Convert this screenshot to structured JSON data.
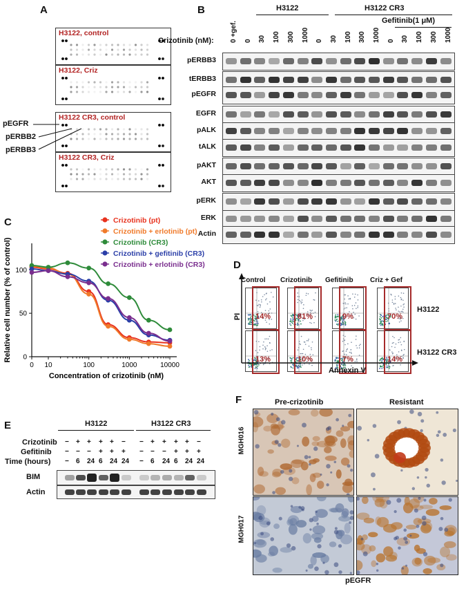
{
  "panels": {
    "A": "A",
    "B": "B",
    "C": "C",
    "D": "D",
    "E": "E",
    "F": "F"
  },
  "panelA": {
    "arrays": [
      "H3122, control",
      "H3122, Criz",
      "H3122 CR3, control",
      "H3122 CR3, Criz"
    ],
    "pointers": [
      "pEGFR",
      "pERBB2",
      "pERBB3"
    ]
  },
  "panelB": {
    "groups": [
      "H3122",
      "H3122 CR3"
    ],
    "gefitinib_header": "Gefitinib(1 μM)",
    "dose_label": "Crizotinib (nM):",
    "doses": [
      "0 +gef.",
      "0",
      "30",
      "100",
      "300",
      "1000",
      "0",
      "30",
      "100",
      "300",
      "1000",
      "0",
      "30",
      "100",
      "300",
      "1000"
    ],
    "rows": [
      "pERBB3",
      "tERBB3",
      "pEGFR",
      "EGFR",
      "pALK",
      "tALK",
      "pAKT",
      "AKT",
      "pERK",
      "ERK",
      "Actin"
    ]
  },
  "chart_data": {
    "type": "scatter",
    "xlabel": "Concentration of crizotinib (nM)",
    "ylabel": "Relative cell number (% of control)",
    "x_scale": "log",
    "xticks": [
      "0",
      "10",
      "100",
      "1000",
      "10000"
    ],
    "yticks": [
      "0",
      "50",
      "100"
    ],
    "ylim": [
      0,
      120
    ],
    "legend_position": "top-right",
    "x": [
      0,
      10,
      30,
      100,
      300,
      1000,
      3000,
      10000
    ],
    "series": [
      {
        "name": "Crizotinib (pt)",
        "color": "#e8321e",
        "values": [
          103,
          101,
          96,
          75,
          37,
          22,
          17,
          16
        ]
      },
      {
        "name": "Crizotinib + erlotinib (pt)",
        "color": "#f07a2a",
        "values": [
          104,
          102,
          95,
          72,
          35,
          20,
          15,
          12
        ]
      },
      {
        "name": "Crizotinib (CR3)",
        "color": "#2e8b3a",
        "values": [
          105,
          103,
          108,
          102,
          84,
          68,
          42,
          31
        ]
      },
      {
        "name": "Crizotinib + gefitinib (CR3)",
        "color": "#2b3fa8",
        "values": [
          101,
          99,
          95,
          87,
          65,
          42,
          25,
          19
        ]
      },
      {
        "name": "Crizotinib + erlotinib (CR3)",
        "color": "#7a2e8e",
        "values": [
          97,
          99,
          92,
          85,
          67,
          45,
          27,
          18
        ]
      }
    ]
  },
  "panelD": {
    "columns": [
      "Control",
      "Crizotinib",
      "Gefitinib",
      "Criz + Gef"
    ],
    "rows": [
      "H3122",
      "H3122 CR3"
    ],
    "values": [
      [
        "14%",
        "81%",
        "9%",
        "70%"
      ],
      [
        "13%",
        "10%",
        "7%",
        "14%"
      ]
    ],
    "xlabel": "Annexin V",
    "ylabel": "PI"
  },
  "panelE": {
    "groups": [
      "H3122",
      "H3122 CR3"
    ],
    "row_labels": [
      "Crizotinib",
      "Gefitinib",
      "Time (hours)"
    ],
    "crizotinib": [
      "−",
      "+",
      "+",
      "+",
      "+",
      "−",
      "−",
      "+",
      "+",
      "+",
      "+",
      "−"
    ],
    "gefitinib": [
      "−",
      "−",
      "−",
      "+",
      "+",
      "+",
      "−",
      "−",
      "−",
      "+",
      "+",
      "+"
    ],
    "time": [
      "−",
      "6",
      "24",
      "6",
      "24",
      "24",
      "−",
      "6",
      "24",
      "6",
      "24",
      "24"
    ],
    "blots": [
      "BIM",
      "Actin"
    ]
  },
  "panelF": {
    "columns": [
      "Pre-crizotinib",
      "Resistant"
    ],
    "rows": [
      "MGH016",
      "MGH017"
    ],
    "xlabel": "pEGFR"
  }
}
